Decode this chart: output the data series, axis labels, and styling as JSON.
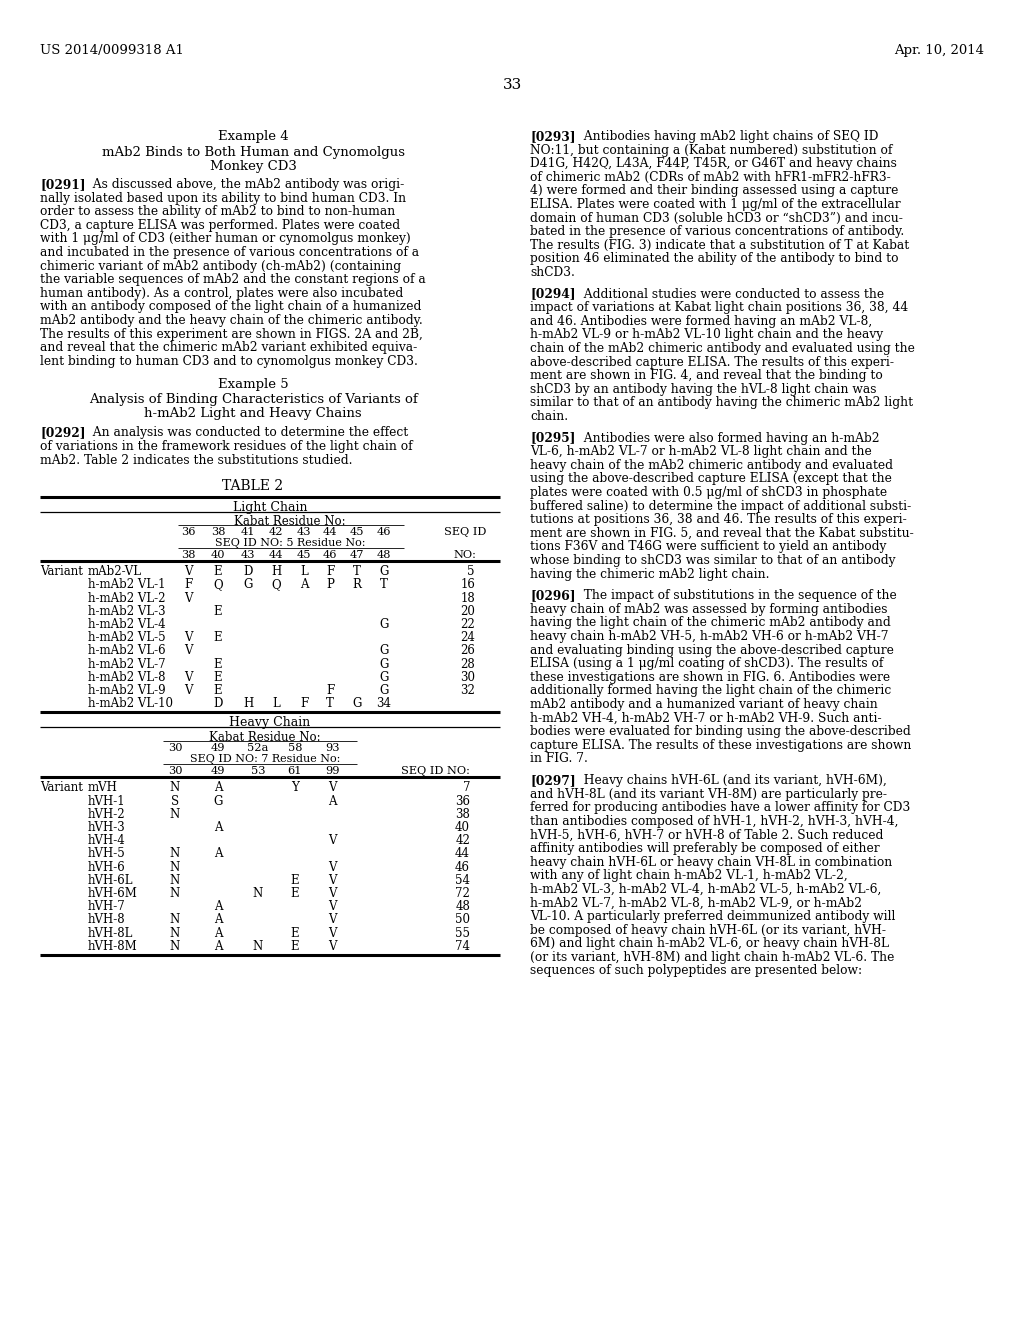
{
  "page_number": "33",
  "header_left": "US 2014/0099318 A1",
  "header_right": "Apr. 10, 2014",
  "bg_color": "#ffffff"
}
